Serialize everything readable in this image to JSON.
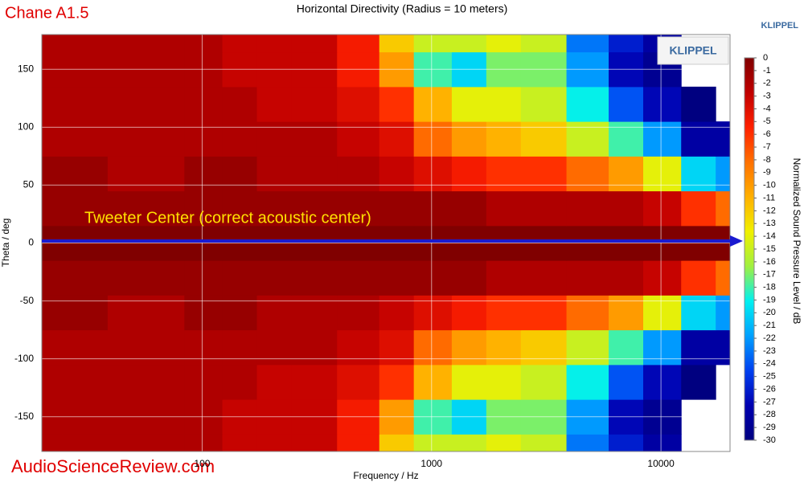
{
  "chart_data": {
    "type": "contour",
    "corner_label": "Chane A1.5",
    "title": "Horizontal Directivity (Radius = 10 meters)",
    "brand": "KLIPPEL",
    "logo": "KLIPPEL",
    "annotation": "Tweeter Center (correct acoustic center)",
    "watermark": "AudioScienceReview.com",
    "x_label": "Frequency / Hz",
    "y_label": "Theta / deg",
    "colorbar_label": "Normalized Sound Pressure Level / dB",
    "x_scale": "log",
    "grid": true,
    "xlim": [
      20,
      20000
    ],
    "xticks": [
      100,
      1000,
      10000
    ],
    "ylim": [
      -180,
      180
    ],
    "yticks": [
      -150,
      -100,
      -50,
      0,
      50,
      100,
      150
    ],
    "zlim": [
      -30,
      0
    ],
    "cticks": [
      0,
      -1,
      -2,
      -3,
      -4,
      -5,
      -6,
      -7,
      -8,
      -9,
      -10,
      -11,
      -12,
      -13,
      -14,
      -15,
      -16,
      -17,
      -18,
      -19,
      -20,
      -21,
      -22,
      -23,
      -24,
      -25,
      -26,
      -27,
      -28,
      -29,
      -30
    ],
    "colors": [
      "#800000",
      "#c00000",
      "#ff2000",
      "#ff7000",
      "#ffb000",
      "#f0f000",
      "#a0f040",
      "#00f0f0",
      "#00a0ff",
      "#0040f0",
      "#0000b0",
      "#000080"
    ],
    "x": [
      20,
      30,
      50,
      70,
      100,
      150,
      200,
      300,
      500,
      700,
      1000,
      1500,
      2000,
      3000,
      5000,
      7000,
      10000,
      15000,
      20000
    ],
    "y": [
      -180,
      -150,
      -120,
      -90,
      -60,
      -30,
      0,
      30,
      60,
      90,
      120,
      150,
      180
    ],
    "z": [
      [
        -2,
        -2,
        -2,
        -2,
        -2,
        -3,
        -3,
        -3,
        -5,
        -12,
        -15,
        -15,
        -14,
        -15,
        -23,
        -26,
        -28,
        null,
        null
      ],
      [
        -2,
        -2,
        -2,
        -2,
        -2,
        -3,
        -3,
        -3,
        -5,
        -10,
        -18,
        -20,
        -17,
        -17,
        -22,
        -27,
        -29,
        null,
        null
      ],
      [
        -2,
        -2,
        -2,
        -2,
        -2,
        -2,
        -3,
        -3,
        -4,
        -6,
        -11,
        -14,
        -14,
        -15,
        -19,
        -24,
        -27,
        -30,
        null
      ],
      [
        -2,
        -2,
        -2,
        -2,
        -2,
        -2,
        -2,
        -2,
        -3,
        -4,
        -8,
        -10,
        -11,
        -12,
        -15,
        -18,
        -22,
        -28,
        -28
      ],
      [
        -1,
        -1,
        -2,
        -2,
        -1,
        -1,
        -2,
        -2,
        -2,
        -3,
        -4,
        -5,
        -6,
        -6,
        -8,
        -10,
        -14,
        -20,
        -22
      ],
      [
        -1,
        -1,
        -1,
        -1,
        -1,
        -1,
        -1,
        -1,
        -1,
        -1,
        -1,
        -1,
        -2,
        -2,
        -2,
        -2,
        -3,
        -6,
        -8
      ],
      [
        0,
        0,
        0,
        0,
        0,
        0,
        0,
        0,
        0,
        0,
        0,
        0,
        0,
        0,
        0,
        0,
        0,
        0,
        0
      ],
      [
        -1,
        -1,
        -1,
        -1,
        -1,
        -1,
        -1,
        -1,
        -1,
        -1,
        -1,
        -1,
        -2,
        -2,
        -2,
        -2,
        -3,
        -6,
        -8
      ],
      [
        -1,
        -1,
        -2,
        -2,
        -1,
        -1,
        -2,
        -2,
        -2,
        -3,
        -4,
        -5,
        -6,
        -6,
        -8,
        -10,
        -14,
        -20,
        -22
      ],
      [
        -2,
        -2,
        -2,
        -2,
        -2,
        -2,
        -2,
        -2,
        -3,
        -4,
        -8,
        -10,
        -11,
        -12,
        -15,
        -18,
        -22,
        -28,
        -28
      ],
      [
        -2,
        -2,
        -2,
        -2,
        -2,
        -2,
        -3,
        -3,
        -4,
        -6,
        -11,
        -14,
        -14,
        -15,
        -19,
        -24,
        -27,
        -30,
        null
      ],
      [
        -2,
        -2,
        -2,
        -2,
        -2,
        -3,
        -3,
        -3,
        -5,
        -10,
        -18,
        -20,
        -17,
        -17,
        -22,
        -27,
        -29,
        null,
        null
      ],
      [
        -2,
        -2,
        -2,
        -2,
        -2,
        -3,
        -3,
        -3,
        -5,
        -12,
        -15,
        -15,
        -14,
        -15,
        -23,
        -26,
        -28,
        null,
        null
      ]
    ]
  }
}
